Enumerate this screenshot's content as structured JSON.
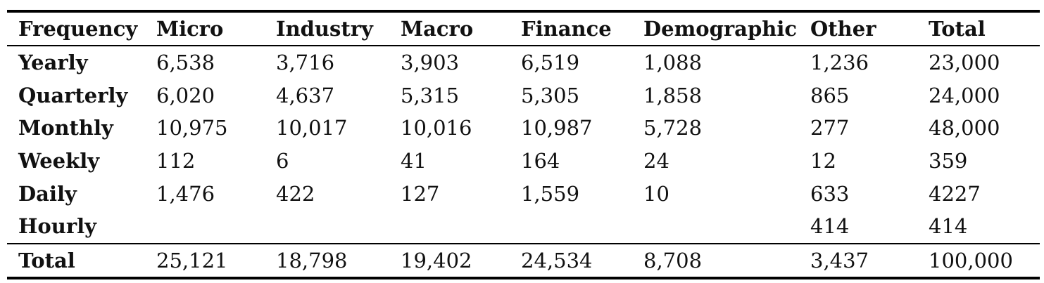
{
  "table": {
    "columns": [
      "Frequency",
      "Micro",
      "Industry",
      "Macro",
      "Finance",
      "Demographic",
      "Other",
      "Total"
    ],
    "rows": [
      [
        "Yearly",
        "6,538",
        "3,716",
        "3,903",
        "6,519",
        "1,088",
        "1,236",
        "23,000"
      ],
      [
        "Quarterly",
        "6,020",
        "4,637",
        "5,315",
        "5,305",
        "1,858",
        "865",
        "24,000"
      ],
      [
        "Monthly",
        "10,975",
        "10,017",
        "10,016",
        "10,987",
        "5,728",
        "277",
        "48,000"
      ],
      [
        "Weekly",
        "112",
        "6",
        "41",
        "164",
        "24",
        "12",
        "359"
      ],
      [
        "Daily",
        "1,476",
        "422",
        "127",
        "1,559",
        "10",
        "633",
        "4227"
      ],
      [
        "Hourly",
        "",
        "",
        "",
        "",
        "",
        "414",
        "414"
      ]
    ],
    "total_row": [
      "Total",
      "25,121",
      "18,798",
      "19,402",
      "24,534",
      "8,708",
      "3,437",
      "100,000"
    ]
  }
}
